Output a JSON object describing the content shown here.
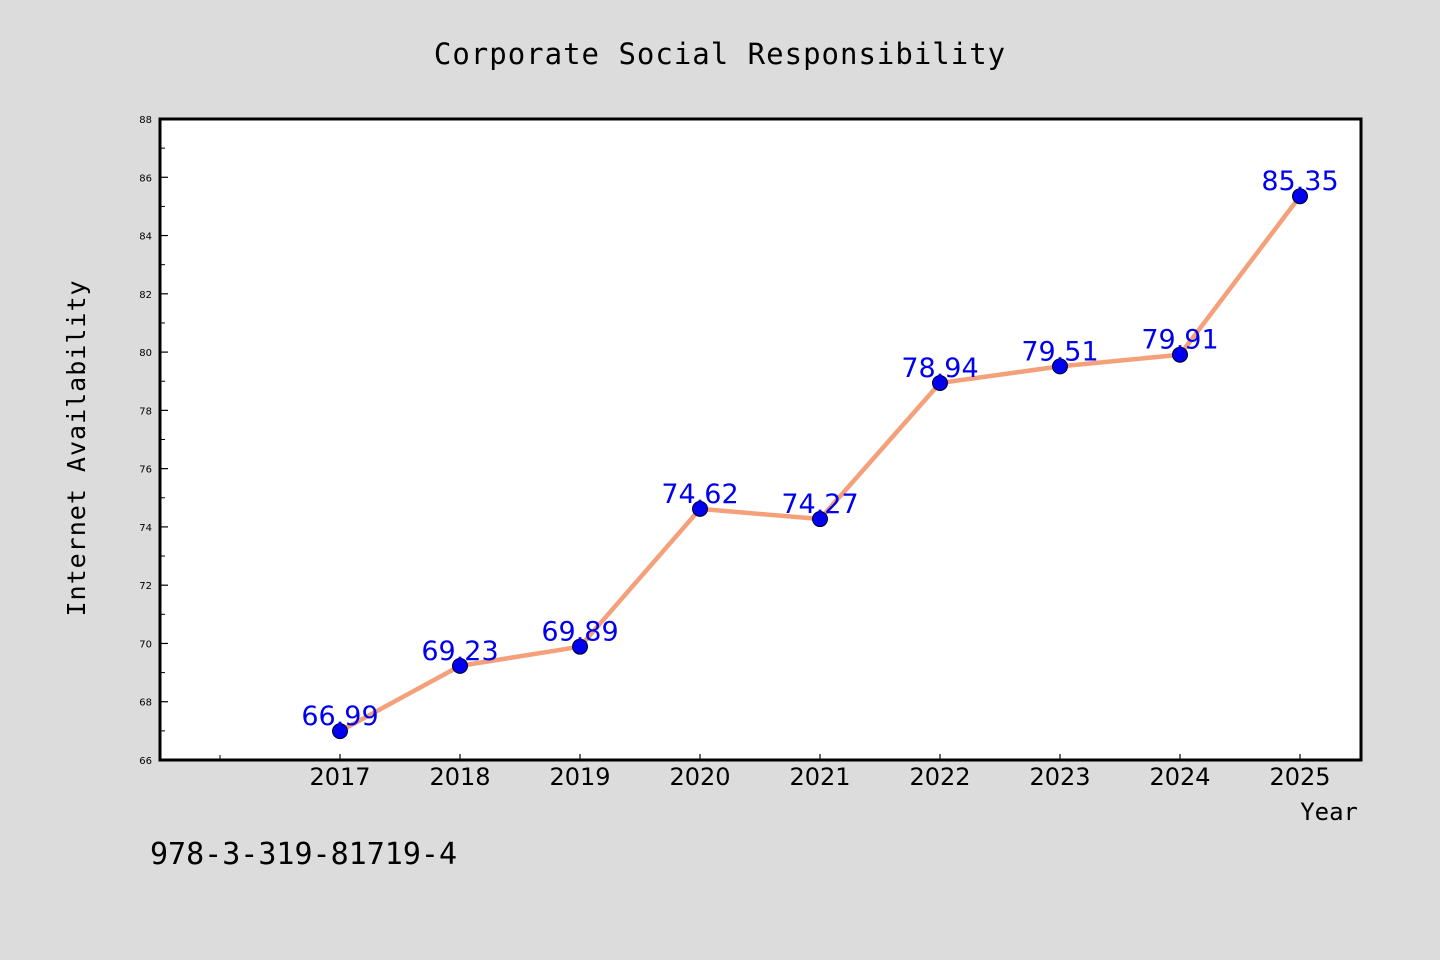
{
  "chart_data": {
    "type": "line",
    "title": "Corporate Social Responsibility",
    "xlabel": "Year",
    "ylabel": "Internet Availability",
    "x": [
      "2017",
      "2018",
      "2019",
      "2020",
      "2021",
      "2022",
      "2023",
      "2024",
      "2025"
    ],
    "series": [
      {
        "values": [
          66.99,
          69.23,
          69.89,
          74.62,
          74.27,
          78.94,
          79.51,
          79.91,
          85.35
        ],
        "data_labels": [
          "66.99",
          "69.23",
          "69.89",
          "74.62",
          "74.27",
          "78.94",
          "79.51",
          "79.91",
          "85.35"
        ],
        "line_color": "#f4a07a",
        "marker_color": "#0000ee"
      }
    ],
    "y_ticks": [
      "66",
      "68",
      "70",
      "72",
      "74",
      "76",
      "78",
      "80",
      "82",
      "84",
      "86",
      "88"
    ],
    "ylim": [
      66,
      88
    ],
    "legend": "none",
    "grid": false
  },
  "annotation": "978-3-319-81719-4",
  "colors": {
    "background": "#dcdcdc",
    "plot_area": "#ffffff",
    "axis": "#000000",
    "data_label": "#0000ee"
  }
}
